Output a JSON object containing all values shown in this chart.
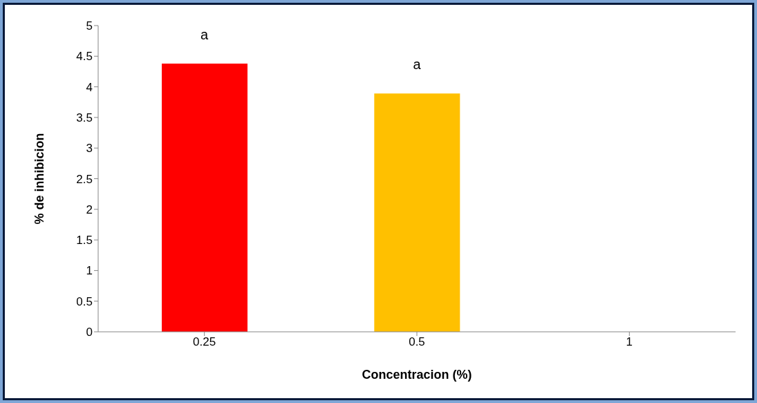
{
  "chart_data": {
    "type": "bar",
    "categories": [
      "0.25",
      "0.5",
      "1"
    ],
    "values": [
      4.38,
      3.89,
      0
    ],
    "colors": [
      "#ff0000",
      "#ffc000",
      "#808080"
    ],
    "xlabel": "Concentracion (%)",
    "ylabel": "% de inhibicion",
    "ylim": [
      0,
      5
    ],
    "yticks": [
      0,
      0.5,
      1,
      1.5,
      2,
      2.5,
      3,
      3.5,
      4,
      4.5,
      5
    ],
    "grid": false,
    "legend": false,
    "annotations": [
      "a",
      "a"
    ]
  }
}
